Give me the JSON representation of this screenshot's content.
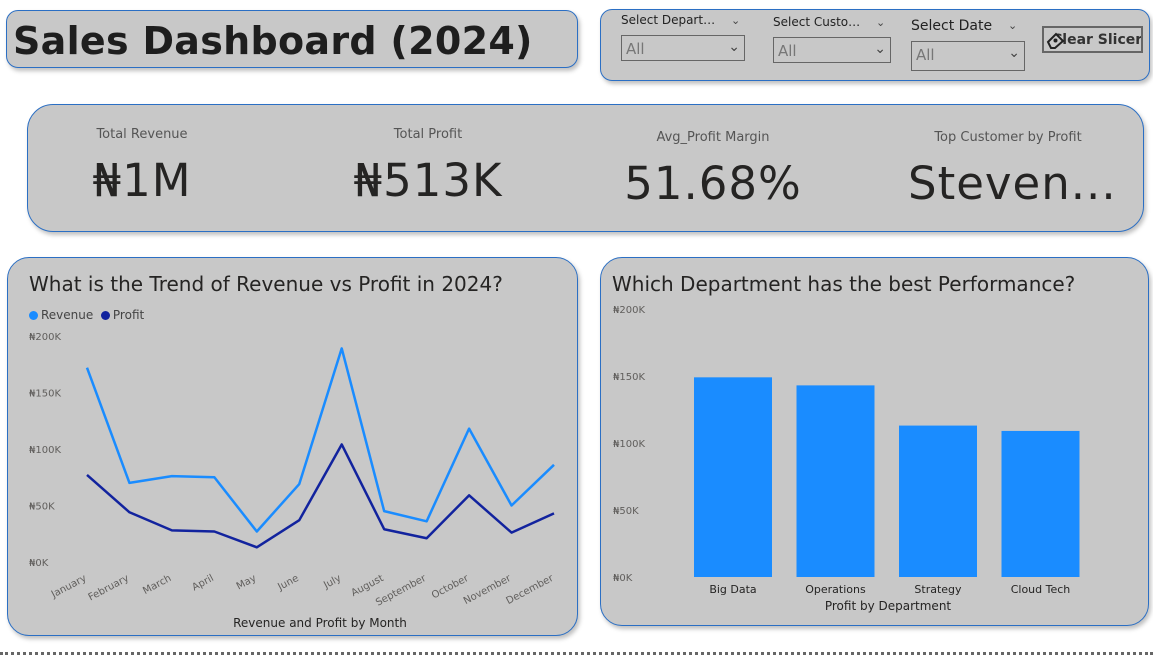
{
  "header": {
    "title": "Sales Dashboard (2024)"
  },
  "slicers": [
    {
      "label": "Select Depart…",
      "value": "All"
    },
    {
      "label": "Select Custo…",
      "value": "All"
    },
    {
      "label": "Select Date",
      "value": "All"
    }
  ],
  "clear_button": {
    "label": "Clear Slicers"
  },
  "kpis": [
    {
      "label": "Total Revenue",
      "value": "₦1M"
    },
    {
      "label": "Total Profit",
      "value": "₦513K"
    },
    {
      "label": "Avg_Profit Margin",
      "value": "51.68%"
    },
    {
      "label": "Top Customer by Profit",
      "value": "Steven..."
    }
  ],
  "colors": {
    "revenue": "#1a8cff",
    "profit": "#12239e",
    "bar": "#1a8cff",
    "card_bg": "#c8c8c8",
    "card_border": "#2b6fc4"
  },
  "chart_data": [
    {
      "type": "line",
      "title": "What is the Trend of Revenue vs Profit in 2024?",
      "xlabel": "Revenue and Profit by Month",
      "ylabel": "",
      "categories": [
        "January",
        "February",
        "March",
        "April",
        "May",
        "June",
        "July",
        "August",
        "September",
        "October",
        "November",
        "December"
      ],
      "series": [
        {
          "name": "Revenue",
          "values": [
            172000,
            70000,
            76000,
            75000,
            27000,
            69000,
            189000,
            45000,
            36000,
            118000,
            50000,
            86000
          ]
        },
        {
          "name": "Profit",
          "values": [
            77000,
            44000,
            28000,
            27000,
            13000,
            37000,
            104000,
            29000,
            21000,
            59000,
            26000,
            43000
          ]
        }
      ],
      "ylim": [
        0,
        200000
      ],
      "yticks": [
        "₦0K",
        "₦50K",
        "₦100K",
        "₦150K",
        "₦200K"
      ],
      "legend": "top-left",
      "grid": false
    },
    {
      "type": "bar",
      "title": "Which Department has the best Performance?",
      "xlabel": "Profit by Department",
      "ylabel": "",
      "categories": [
        "Big Data",
        "Operations",
        "Strategy",
        "Cloud Tech"
      ],
      "values": [
        149000,
        143000,
        113000,
        109000
      ],
      "ylim": [
        0,
        200000
      ],
      "yticks": [
        "₦0K",
        "₦50K",
        "₦100K",
        "₦150K",
        "₦200K"
      ],
      "grid": false
    }
  ]
}
